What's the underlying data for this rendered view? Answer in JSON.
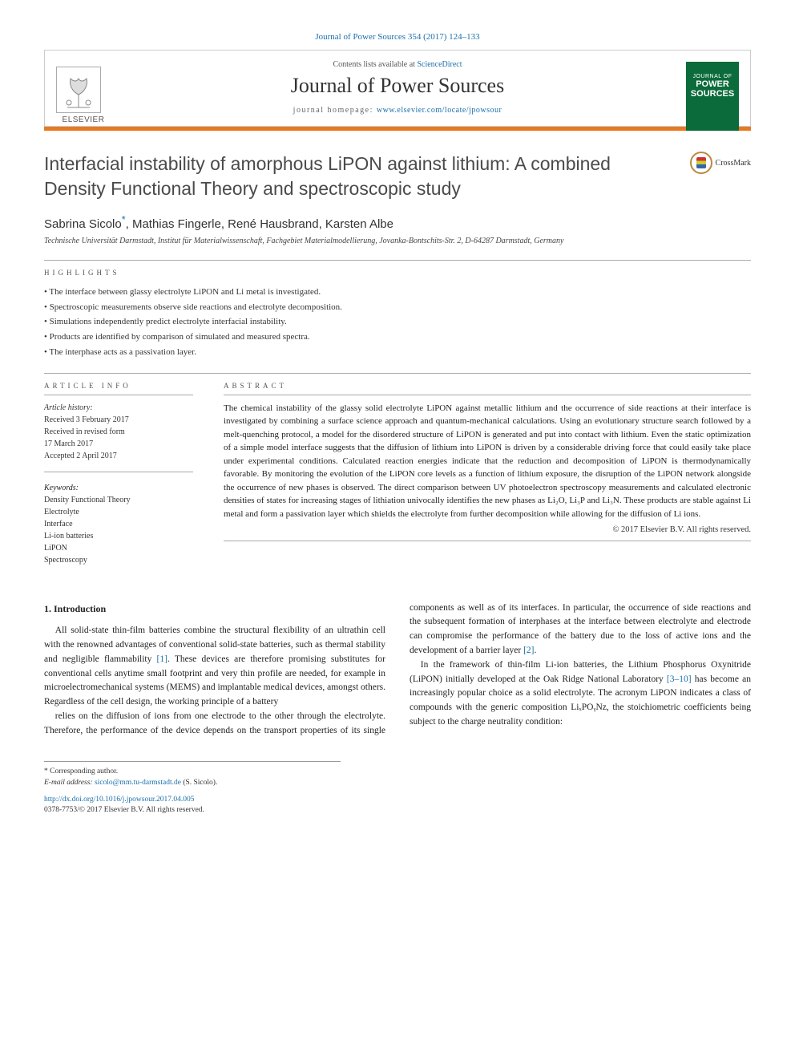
{
  "citation": {
    "prefix": "Journal of Power Sources 354 (2017) 124–133",
    "link_text": "Journal of Power Sources 354 (2017) 124–133"
  },
  "header": {
    "contents_prefix": "Contents lists available at ",
    "contents_link": "ScienceDirect",
    "journal_name": "Journal of Power Sources",
    "homepage_prefix": "journal homepage: ",
    "homepage_link": "www.elsevier.com/locate/jpowsour",
    "publisher": "ELSEVIER",
    "cover_text_top": "POWER",
    "cover_text_bot": "SOURCES"
  },
  "article": {
    "title": "Interfacial instability of amorphous LiPON against lithium: A combined Density Functional Theory and spectroscopic study",
    "crossmark_label": "CrossMark",
    "authors_html": "Sabrina Sicolo",
    "authors_rest": ", Mathias Fingerle, René Hausbrand, Karsten Albe",
    "corr_marker": "*",
    "affiliation": "Technische Universität Darmstadt, Institut für Materialwissenschaft, Fachgebiet Materialmodellierung, Jovanka-Bontschits-Str. 2, D-64287 Darmstadt, Germany"
  },
  "highlights": {
    "label": "HIGHLIGHTS",
    "items": [
      "The interface between glassy electrolyte LiPON and Li metal is investigated.",
      "Spectroscopic measurements observe side reactions and electrolyte decomposition.",
      "Simulations independently predict electrolyte interfacial instability.",
      "Products are identified by comparison of simulated and measured spectra.",
      "The interphase acts as a passivation layer."
    ]
  },
  "info": {
    "article_info_label": "ARTICLE INFO",
    "history_label": "Article history:",
    "received": "Received 3 February 2017",
    "revised": "Received in revised form",
    "revised_date": "17 March 2017",
    "accepted": "Accepted 2 April 2017",
    "keywords_label": "Keywords:",
    "keywords": [
      "Density Functional Theory",
      "Electrolyte",
      "Interface",
      "Li-ion batteries",
      "LiPON",
      "Spectroscopy"
    ]
  },
  "abstract": {
    "label": "ABSTRACT",
    "text": "The chemical instability of the glassy solid electrolyte LiPON against metallic lithium and the occurrence of side reactions at their interface is investigated by combining a surface science approach and quantum-mechanical calculations. Using an evolutionary structure search followed by a melt-quenching protocol, a model for the disordered structure of LiPON is generated and put into contact with lithium. Even the static optimization of a simple model interface suggests that the diffusion of lithium into LiPON is driven by a considerable driving force that could easily take place under experimental conditions. Calculated reaction energies indicate that the reduction and decomposition of LiPON is thermodynamically favorable. By monitoring the evolution of the LiPON core levels as a function of lithium exposure, the disruption of the LiPON network alongside the occurrence of new phases is observed. The direct comparison between UV photoelectron spectroscopy measurements and calculated electronic densities of states for increasing stages of lithiation univocally identifies the new phases as Li₂O, Li₃P and Li₃N. These products are stable against Li metal and form a passivation layer which shields the electrolyte from further decomposition while allowing for the diffusion of Li ions.",
    "copyright": "© 2017 Elsevier B.V. All rights reserved."
  },
  "body": {
    "section1_title": "1. Introduction",
    "para1": "All solid-state thin-film batteries combine the structural flexibility of an ultrathin cell with the renowned advantages of conventional solid-state batteries, such as thermal stability and negligible flammability [1]. These devices are therefore promising substitutes for conventional cells anytime small footprint and very thin profile are needed, for example in microelectromechanical systems (MEMS) and implantable medical devices, amongst others. Regardless of the cell design, the working principle of a battery",
    "para2": "relies on the diffusion of ions from one electrode to the other through the electrolyte. Therefore, the performance of the device depends on the transport properties of its single components as well as of its interfaces. In particular, the occurrence of side reactions and the subsequent formation of interphases at the interface between electrolyte and electrode can compromise the performance of the battery due to the loss of active ions and the development of a barrier layer [2].",
    "para3": "In the framework of thin-film Li-ion batteries, the Lithium Phosphorus Oxynitride (LiPON) initially developed at the Oak Ridge National Laboratory [3–10] has become an increasingly popular choice as a solid electrolyte. The acronym LiPON indicates a class of compounds with the generic composition LiₓPOᵧNz, the stoichiometric coefficients being subject to the charge neutrality condition:"
  },
  "footer": {
    "corr_label": "* Corresponding author.",
    "email_label": "E-mail address: ",
    "email": "sicolo@mm.tu-darmstadt.de",
    "email_suffix": " (S. Sicolo).",
    "doi": "http://dx.doi.org/10.1016/j.jpowsour.2017.04.005",
    "issn_line": "0378-7753/© 2017 Elsevier B.V. All rights reserved."
  },
  "colors": {
    "link": "#1a6faa",
    "accent_bar": "#e8791f",
    "cover_bg": "#0b6b3a"
  }
}
